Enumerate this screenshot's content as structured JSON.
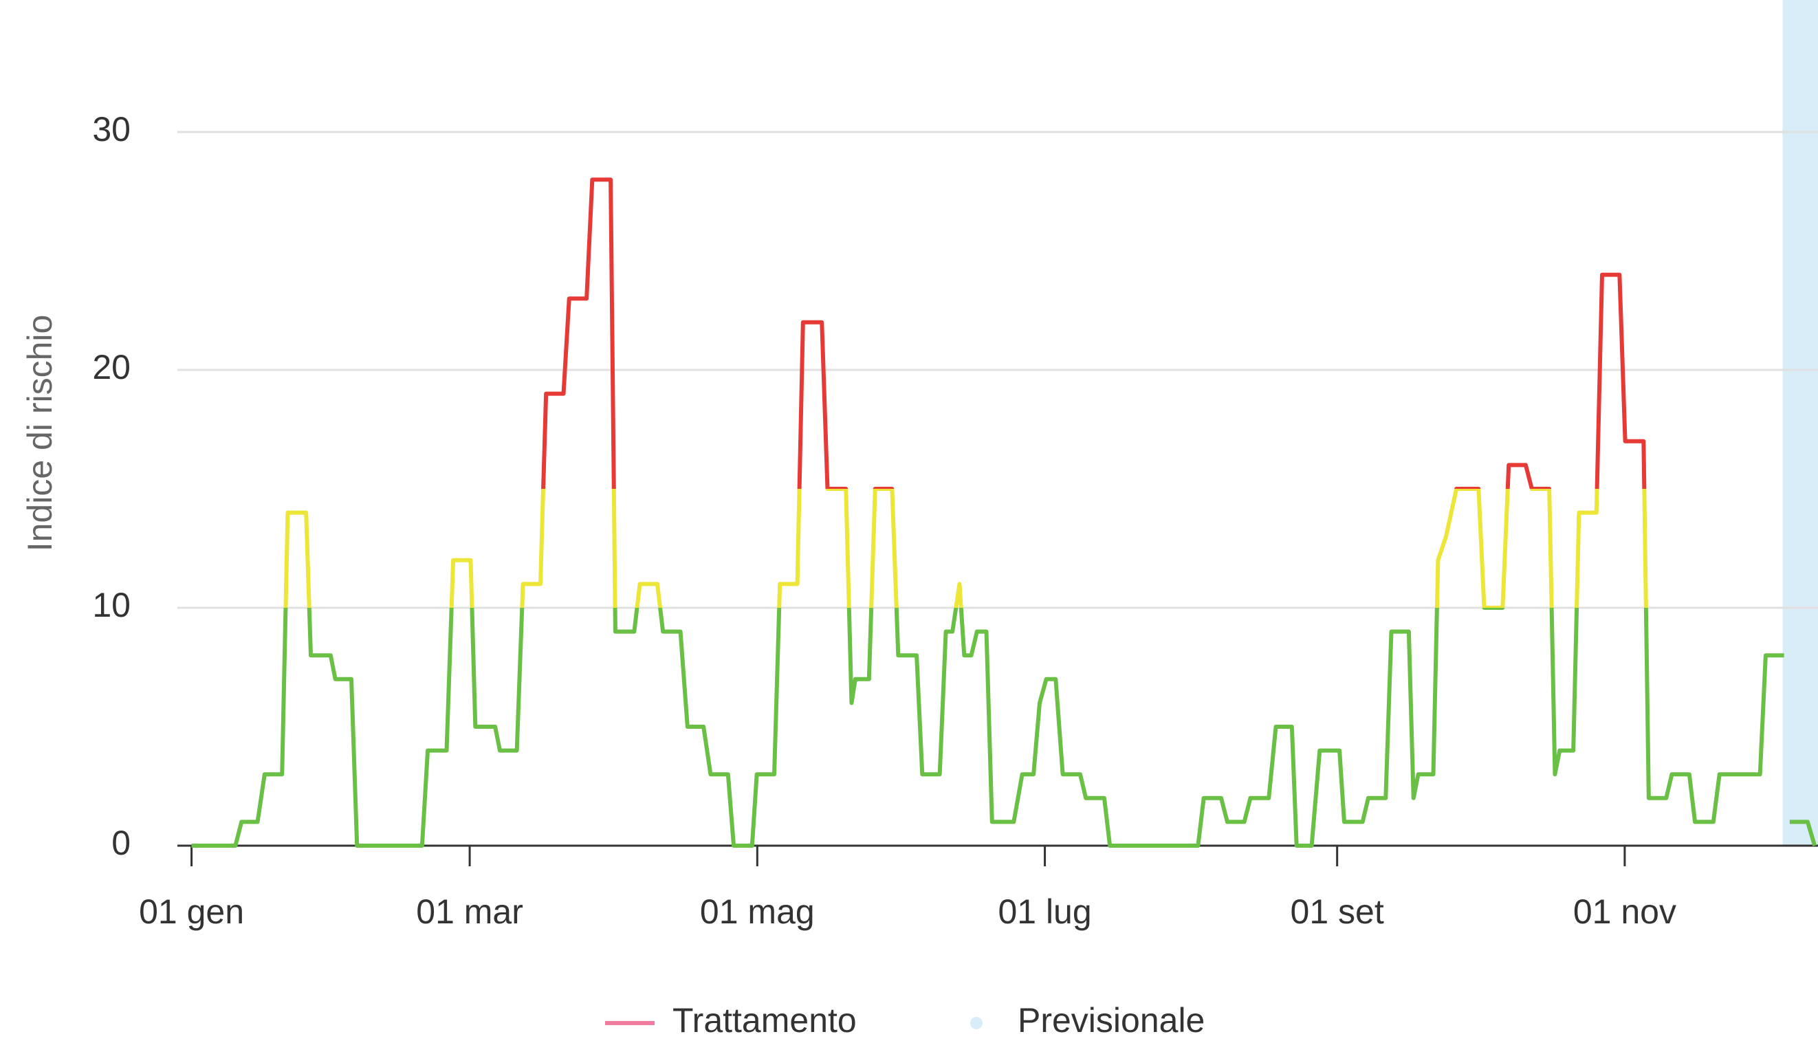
{
  "chart_data": {
    "type": "line",
    "y_label": "Indice di rischio",
    "xlim": [
      -3,
      345
    ],
    "ylim": [
      0,
      30
    ],
    "yticks": [
      0,
      10,
      20,
      30
    ],
    "xticks": [
      {
        "value": 0,
        "label": "01 gen"
      },
      {
        "value": 59,
        "label": "01 mar"
      },
      {
        "value": 120,
        "label": "01 mag"
      },
      {
        "value": 181,
        "label": "01 lug"
      },
      {
        "value": 243,
        "label": "01 set"
      },
      {
        "value": 304,
        "label": "01 nov"
      }
    ],
    "grid": true,
    "legend": "bottom",
    "zones": [
      {
        "value": 10,
        "color": "#6abf45"
      },
      {
        "value": 15,
        "color": "#ede537"
      },
      {
        "color": "#e53a35"
      }
    ],
    "forecast_start": 337.5,
    "series": [
      {
        "name": "Trattamento",
        "color": "#f07ca0",
        "x": [
          0,
          9.3,
          10.6,
          14,
          15.5,
          19.2,
          20.4,
          24.3,
          25.3,
          29.5,
          30.5,
          33.9,
          35.1,
          48.9,
          50.1,
          54.1,
          55.5,
          59.2,
          60.2,
          64.4,
          65.4,
          69,
          70.3,
          74,
          75.2,
          78.9,
          80.1,
          83.8,
          85,
          88.9,
          89.9,
          93.9,
          95.1,
          98.8,
          100,
          103.7,
          105.2,
          108.6,
          110.1,
          113.8,
          115,
          118.9,
          119.9,
          123.6,
          124.8,
          128.5,
          129.7,
          133.7,
          134.9,
          138.8,
          140,
          140.8,
          143.7,
          145,
          148.6,
          149.9,
          153.8,
          155,
          158.7,
          160,
          161.4,
          162.9,
          163.9,
          165.4,
          166.6,
          168.6,
          169.8,
          174.4,
          176.2,
          178.6,
          179.9,
          181.3,
          183.3,
          184.8,
          188.5,
          189.7,
          193.6,
          194.8,
          213.5,
          214.7,
          218.4,
          219.7,
          223.3,
          224.6,
          228.5,
          230,
          233.4,
          234.4,
          237.6,
          239.3,
          243.5,
          244.5,
          248.4,
          249.6,
          253.3,
          254.5,
          258.2,
          259.2,
          260.2,
          263.4,
          264.4,
          266.1,
          268.3,
          273,
          274.2,
          278.1,
          279.4,
          283,
          284.3,
          288,
          289.2,
          290.2,
          293.1,
          294.3,
          298,
          299.2,
          302.9,
          304.1,
          308,
          309.1,
          312.8,
          314,
          317.7,
          318.9,
          322.8,
          324.1,
          332.7,
          333.9,
          337.8
        ],
        "values": [
          0,
          0,
          1,
          1,
          3,
          3,
          14,
          14,
          8,
          8,
          7,
          7,
          0,
          0,
          4,
          4,
          12,
          12,
          5,
          5,
          4,
          4,
          11,
          11,
          19,
          19,
          23,
          23,
          28,
          28,
          9,
          9,
          11,
          11,
          9,
          9,
          5,
          5,
          3,
          3,
          0,
          0,
          3,
          3,
          11,
          11,
          22,
          22,
          15,
          15,
          6,
          7,
          7,
          15,
          15,
          8,
          8,
          3,
          3,
          9,
          9,
          11,
          8,
          8,
          9,
          9,
          1,
          1,
          3,
          3,
          6,
          7,
          7,
          3,
          3,
          2,
          2,
          0,
          0,
          2,
          2,
          1,
          1,
          2,
          2,
          5,
          5,
          0,
          0,
          4,
          4,
          1,
          1,
          2,
          2,
          9,
          9,
          2,
          3,
          3,
          12,
          13,
          15,
          15,
          10,
          10,
          16,
          16,
          15,
          15,
          3,
          4,
          4,
          14,
          14,
          24,
          24,
          17,
          17,
          2,
          2,
          3,
          3,
          1,
          1,
          3,
          3,
          8,
          8
        ]
      },
      {
        "name": "Previsionale",
        "color": "#d9edf9",
        "x": [
          339,
          342.8,
          344.3
        ],
        "values": [
          1,
          1,
          0
        ]
      }
    ]
  }
}
